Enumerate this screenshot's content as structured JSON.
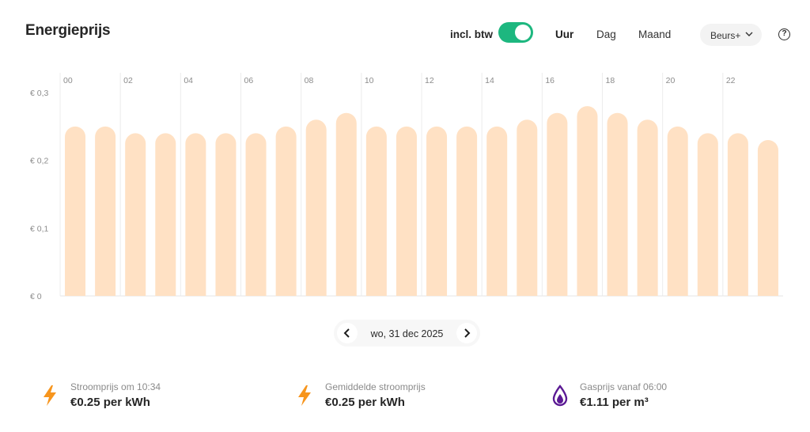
{
  "header": {
    "title": "Energieprijs",
    "btw_label": "incl. btw",
    "btw_enabled": true,
    "tabs": [
      {
        "label": "Uur",
        "active": true
      },
      {
        "label": "Dag",
        "active": false
      },
      {
        "label": "Maand",
        "active": false
      }
    ],
    "tariff_select": "Beurs+",
    "help_icon": "question-circle-icon"
  },
  "colors": {
    "toggle_on": "#1db77f",
    "bar": "#ffe1c4",
    "power_icon": "#f7951d",
    "gas_icon": "#5b1a94"
  },
  "chart_data": {
    "type": "bar",
    "x_tick_labels": [
      "00",
      "02",
      "04",
      "06",
      "08",
      "10",
      "12",
      "14",
      "16",
      "18",
      "20",
      "22"
    ],
    "categories": [
      "00",
      "01",
      "02",
      "03",
      "04",
      "05",
      "06",
      "07",
      "08",
      "09",
      "10",
      "11",
      "12",
      "13",
      "14",
      "15",
      "16",
      "17",
      "18",
      "19",
      "20",
      "21",
      "22",
      "23"
    ],
    "values": [
      0.25,
      0.25,
      0.24,
      0.24,
      0.24,
      0.24,
      0.24,
      0.25,
      0.26,
      0.27,
      0.25,
      0.25,
      0.25,
      0.25,
      0.25,
      0.26,
      0.27,
      0.28,
      0.27,
      0.26,
      0.25,
      0.24,
      0.24,
      0.23
    ],
    "y_ticks": [
      {
        "value": 0.3,
        "label": "€ 0,3"
      },
      {
        "value": 0.2,
        "label": "€ 0,2"
      },
      {
        "value": 0.1,
        "label": "€ 0,1"
      },
      {
        "value": 0,
        "label": "€ 0"
      }
    ],
    "ylim": [
      0,
      0.3
    ],
    "grid": "vertical"
  },
  "date_nav": {
    "date": "wo, 31 dec 2025",
    "prev_icon": "chevron-left-icon",
    "next_icon": "chevron-right-icon"
  },
  "stats": [
    {
      "icon": "lightning-icon",
      "label": "Stroomprijs om 10:34",
      "value": "€0.25 per kWh"
    },
    {
      "icon": "lightning-icon",
      "label": "Gemiddelde stroomprijs",
      "value": "€0.25 per kWh"
    },
    {
      "icon": "gas-drop-icon",
      "label": "Gasprijs vanaf 06:00",
      "value": "€1.11 per m³"
    }
  ]
}
